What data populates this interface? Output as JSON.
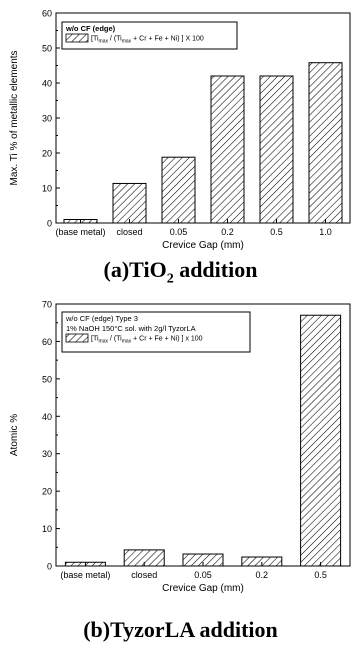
{
  "charts": [
    {
      "type": "bar",
      "xlabel": "Crevice Gap  (mm)",
      "ylabel": "Max. Ti % of metallic elements",
      "ylim": [
        0,
        60
      ],
      "yticks": [
        0,
        10,
        20,
        30,
        40,
        50,
        60
      ],
      "categories": [
        "(base metal)",
        "closed",
        "0.05",
        "0.2",
        "0.5",
        "1.0"
      ],
      "values": [
        1,
        11.3,
        18.8,
        42,
        42,
        45.8
      ],
      "legend_lines": [
        "w/o CF (edge)"
      ],
      "legend_formula": {
        "open": "[Ti",
        "sub1": "max",
        "mid": " / (Ti",
        "sub2": "max",
        "tail": " + Cr + Fe + Ni) ] X 100"
      },
      "legend_position": "top-left"
    },
    {
      "type": "bar",
      "xlabel": "Crevice Gap  (mm)",
      "ylabel": "Atomic %",
      "ylim": [
        0,
        70
      ],
      "yticks": [
        0,
        10,
        20,
        30,
        40,
        50,
        60,
        70
      ],
      "categories": [
        "(base metal)",
        "closed",
        "0.05",
        "0.2",
        "0.5"
      ],
      "values": [
        1,
        4.3,
        3.2,
        2.4,
        67
      ],
      "legend_lines": [
        "w/o CF  (edge) Type 3",
        "1% NaOH 150°C sol. with 2g/l TyzorLA"
      ],
      "legend_formula": {
        "open": "[Ti",
        "sub1": "max",
        "mid": " / (Ti",
        "sub2": "max",
        "tail": " + Cr + Fe + Ni) ] x 100"
      },
      "legend_position": "top-left"
    }
  ],
  "captions": {
    "a_pre": "(a)TiO",
    "a_sub": "2",
    "a_post": " addition",
    "b": "(b)TyzorLA addition"
  }
}
